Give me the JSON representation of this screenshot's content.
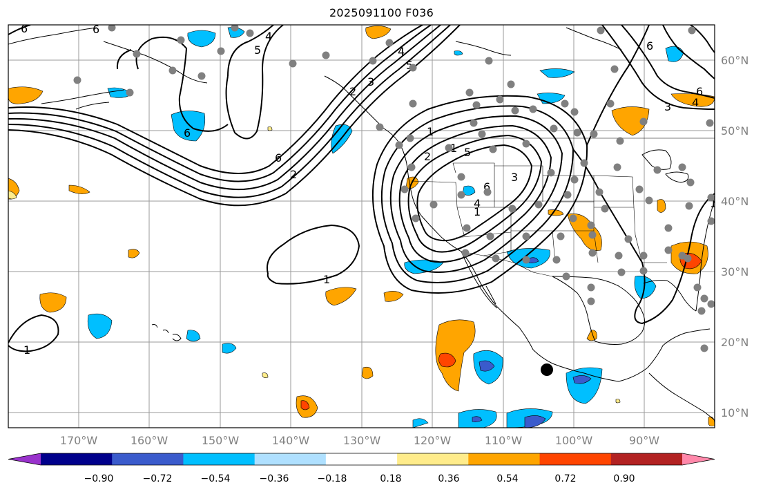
{
  "title": "2025091100 F036",
  "map": {
    "lon_ticks": [
      "170°W",
      "160°W",
      "150°W",
      "140°W",
      "130°W",
      "120°W",
      "110°W",
      "100°W",
      "90°W"
    ],
    "lat_ticks": [
      "60°N",
      "50°N",
      "40°N",
      "30°N",
      "20°N",
      "10°N"
    ],
    "gridlines": true,
    "contour_labels": [
      "6",
      "6",
      "4",
      "5",
      "2",
      "3",
      "6",
      "2",
      "1",
      "1",
      "6",
      "5",
      "4",
      "3",
      "6",
      "4",
      "5",
      "2",
      "1",
      "1",
      "6",
      "3",
      "6",
      "4",
      "1",
      "1"
    ],
    "marker": "storm-center-dot",
    "fill_colors": {
      "neg_strong": "#3a5bcc",
      "neg_mid": "#00bfff",
      "pos_mid": "#ffa500",
      "pos_strong": "#ff4500"
    }
  },
  "colorbar": {
    "labels": [
      "−0.90",
      "−0.72",
      "−0.54",
      "−0.36",
      "−0.18",
      "0.18",
      "0.36",
      "0.54",
      "0.72",
      "0.90"
    ],
    "colors": [
      "#9932cc",
      "#00008b",
      "#3a5bcc",
      "#00bfff",
      "#afe0ff",
      "#ffffff",
      "#ffec8b",
      "#ffa500",
      "#ff4500",
      "#b22222",
      "#ff88aa"
    ]
  }
}
